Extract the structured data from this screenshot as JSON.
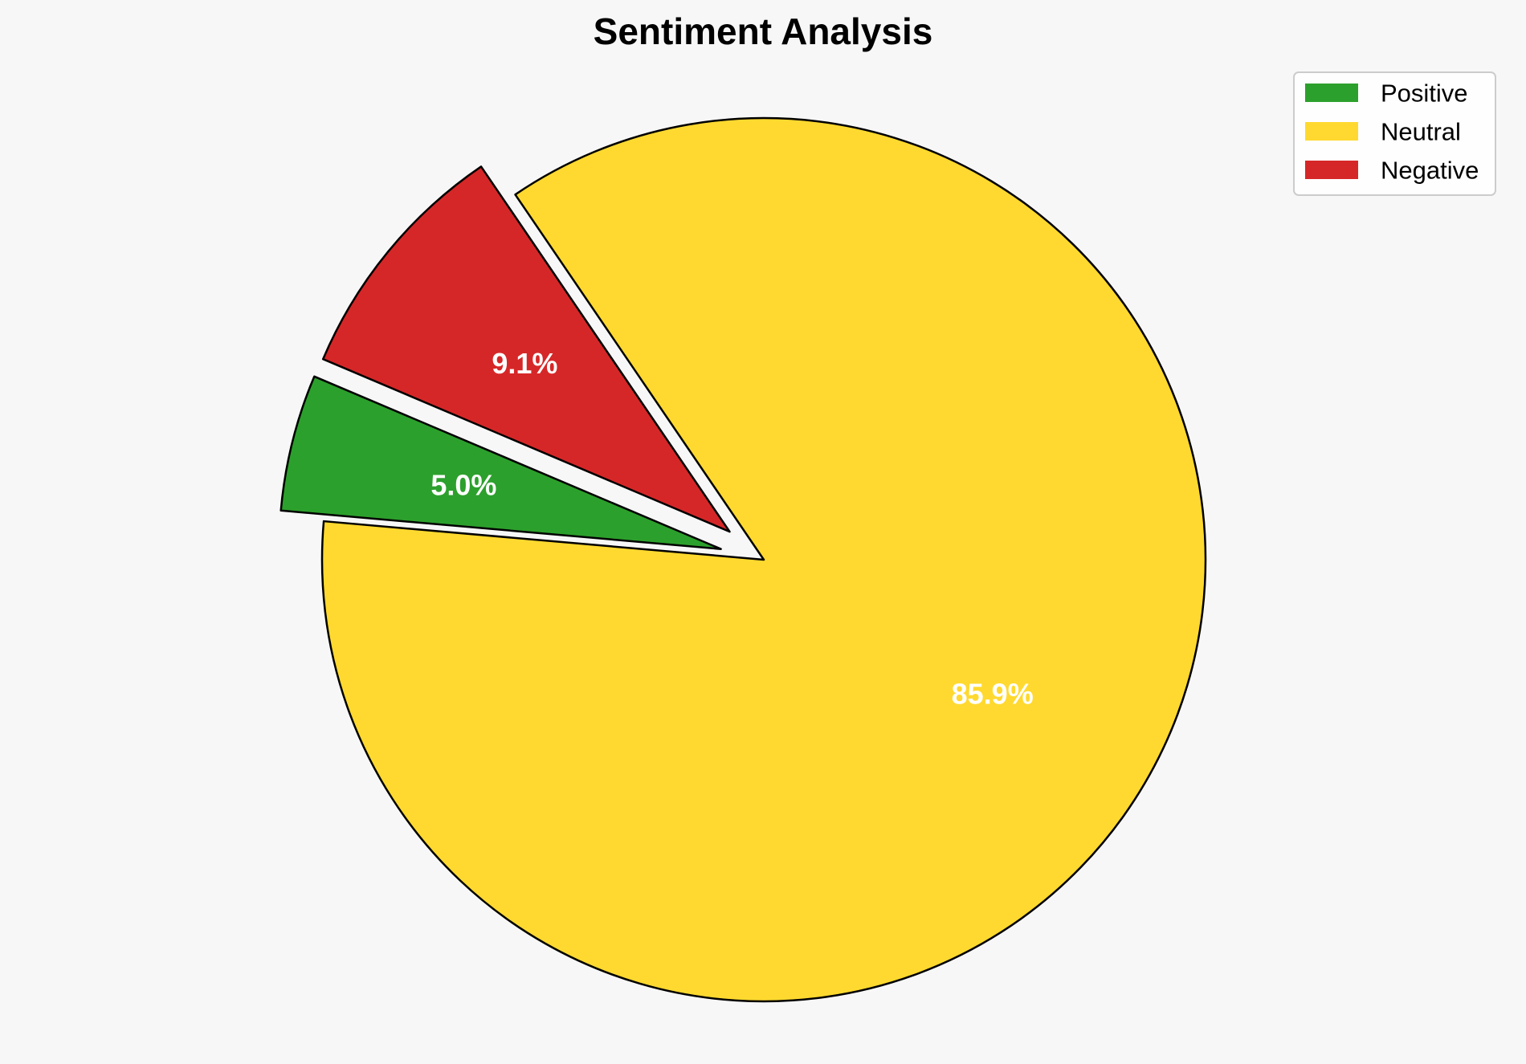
{
  "chart_data": {
    "type": "pie",
    "title": "Sentiment Analysis",
    "categories": [
      "Positive",
      "Neutral",
      "Negative"
    ],
    "values": [
      5.0,
      85.9,
      9.1
    ],
    "labels": [
      "5.0%",
      "85.9%",
      "9.1%"
    ],
    "colors": [
      "#2ca02c",
      "#ffd92f",
      "#d62728"
    ],
    "exploded": [
      "Positive",
      "Negative"
    ],
    "legend": {
      "placement": "top-right",
      "entries": [
        "Positive",
        "Neutral",
        "Negative"
      ]
    }
  }
}
